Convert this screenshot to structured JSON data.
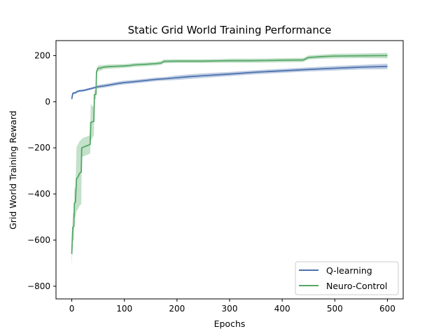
{
  "chart_data": {
    "type": "line",
    "title": "Static Grid World Training Performance",
    "xlabel": "Epochs",
    "ylabel": "Grid World Training Reward",
    "xlim": [
      -30,
      630
    ],
    "ylim": [
      -855,
      265
    ],
    "xticks": [
      0,
      100,
      200,
      300,
      400,
      500,
      600
    ],
    "yticks": [
      -800,
      -600,
      -400,
      -200,
      0,
      200
    ],
    "xtick_labels": [
      "0",
      "100",
      "200",
      "300",
      "400",
      "500",
      "600"
    ],
    "ytick_labels": [
      "−800",
      "−600",
      "−400",
      "−200",
      "0",
      "200"
    ],
    "grid": false,
    "legend_position": "lower-right",
    "series": [
      {
        "name": "Q-learning",
        "color": "#4c72b0",
        "band_color": "#4c72b0",
        "points": [
          [
            0,
            12
          ],
          [
            2,
            36
          ],
          [
            5,
            38
          ],
          [
            8,
            40
          ],
          [
            10,
            44
          ],
          [
            15,
            47
          ],
          [
            20,
            48
          ],
          [
            25,
            50
          ],
          [
            30,
            53
          ],
          [
            35,
            56
          ],
          [
            40,
            59
          ],
          [
            45,
            62
          ],
          [
            50,
            65
          ],
          [
            60,
            68
          ],
          [
            70,
            72
          ],
          [
            80,
            76
          ],
          [
            90,
            80
          ],
          [
            100,
            83
          ],
          [
            120,
            87
          ],
          [
            140,
            92
          ],
          [
            160,
            97
          ],
          [
            180,
            100
          ],
          [
            200,
            104
          ],
          [
            220,
            108
          ],
          [
            250,
            113
          ],
          [
            300,
            120
          ],
          [
            350,
            128
          ],
          [
            400,
            134
          ],
          [
            450,
            140
          ],
          [
            500,
            145
          ],
          [
            550,
            150
          ],
          [
            600,
            153
          ]
        ],
        "band_halfwidth": [
          [
            0,
            5
          ],
          [
            50,
            8
          ],
          [
            100,
            8
          ],
          [
            200,
            10
          ],
          [
            300,
            9
          ],
          [
            400,
            9
          ],
          [
            500,
            10
          ],
          [
            600,
            12
          ]
        ]
      },
      {
        "name": "Neuro-Control",
        "color": "#55a868",
        "band_color": "#55a868",
        "points": [
          [
            0,
            -660
          ],
          [
            2,
            -545
          ],
          [
            4,
            -540
          ],
          [
            5,
            -440
          ],
          [
            7,
            -435
          ],
          [
            9,
            -335
          ],
          [
            12,
            -325
          ],
          [
            15,
            -310
          ],
          [
            18,
            -305
          ],
          [
            19,
            -200
          ],
          [
            24,
            -195
          ],
          [
            30,
            -190
          ],
          [
            35,
            -185
          ],
          [
            36,
            -90
          ],
          [
            42,
            -85
          ],
          [
            43,
            30
          ],
          [
            46,
            32
          ],
          [
            47,
            130
          ],
          [
            50,
            145
          ],
          [
            55,
            146
          ],
          [
            60,
            150
          ],
          [
            70,
            152
          ],
          [
            80,
            153
          ],
          [
            100,
            155
          ],
          [
            110,
            157
          ],
          [
            120,
            160
          ],
          [
            140,
            162
          ],
          [
            160,
            165
          ],
          [
            170,
            168
          ],
          [
            175,
            175
          ],
          [
            200,
            176
          ],
          [
            250,
            176
          ],
          [
            280,
            177
          ],
          [
            300,
            178
          ],
          [
            340,
            178
          ],
          [
            380,
            179
          ],
          [
            400,
            180
          ],
          [
            440,
            181
          ],
          [
            450,
            192
          ],
          [
            480,
            196
          ],
          [
            500,
            198
          ],
          [
            550,
            199
          ],
          [
            600,
            200
          ]
        ],
        "band_halfwidth": [
          [
            0,
            60
          ],
          [
            2,
            60
          ],
          [
            5,
            65
          ],
          [
            9,
            140
          ],
          [
            18,
            140
          ],
          [
            19,
            40
          ],
          [
            35,
            40
          ],
          [
            36,
            80
          ],
          [
            42,
            60
          ],
          [
            43,
            20
          ],
          [
            47,
            12
          ],
          [
            60,
            9
          ],
          [
            100,
            8
          ],
          [
            200,
            8
          ],
          [
            300,
            9
          ],
          [
            400,
            9
          ],
          [
            500,
            10
          ],
          [
            600,
            12
          ]
        ]
      }
    ]
  }
}
